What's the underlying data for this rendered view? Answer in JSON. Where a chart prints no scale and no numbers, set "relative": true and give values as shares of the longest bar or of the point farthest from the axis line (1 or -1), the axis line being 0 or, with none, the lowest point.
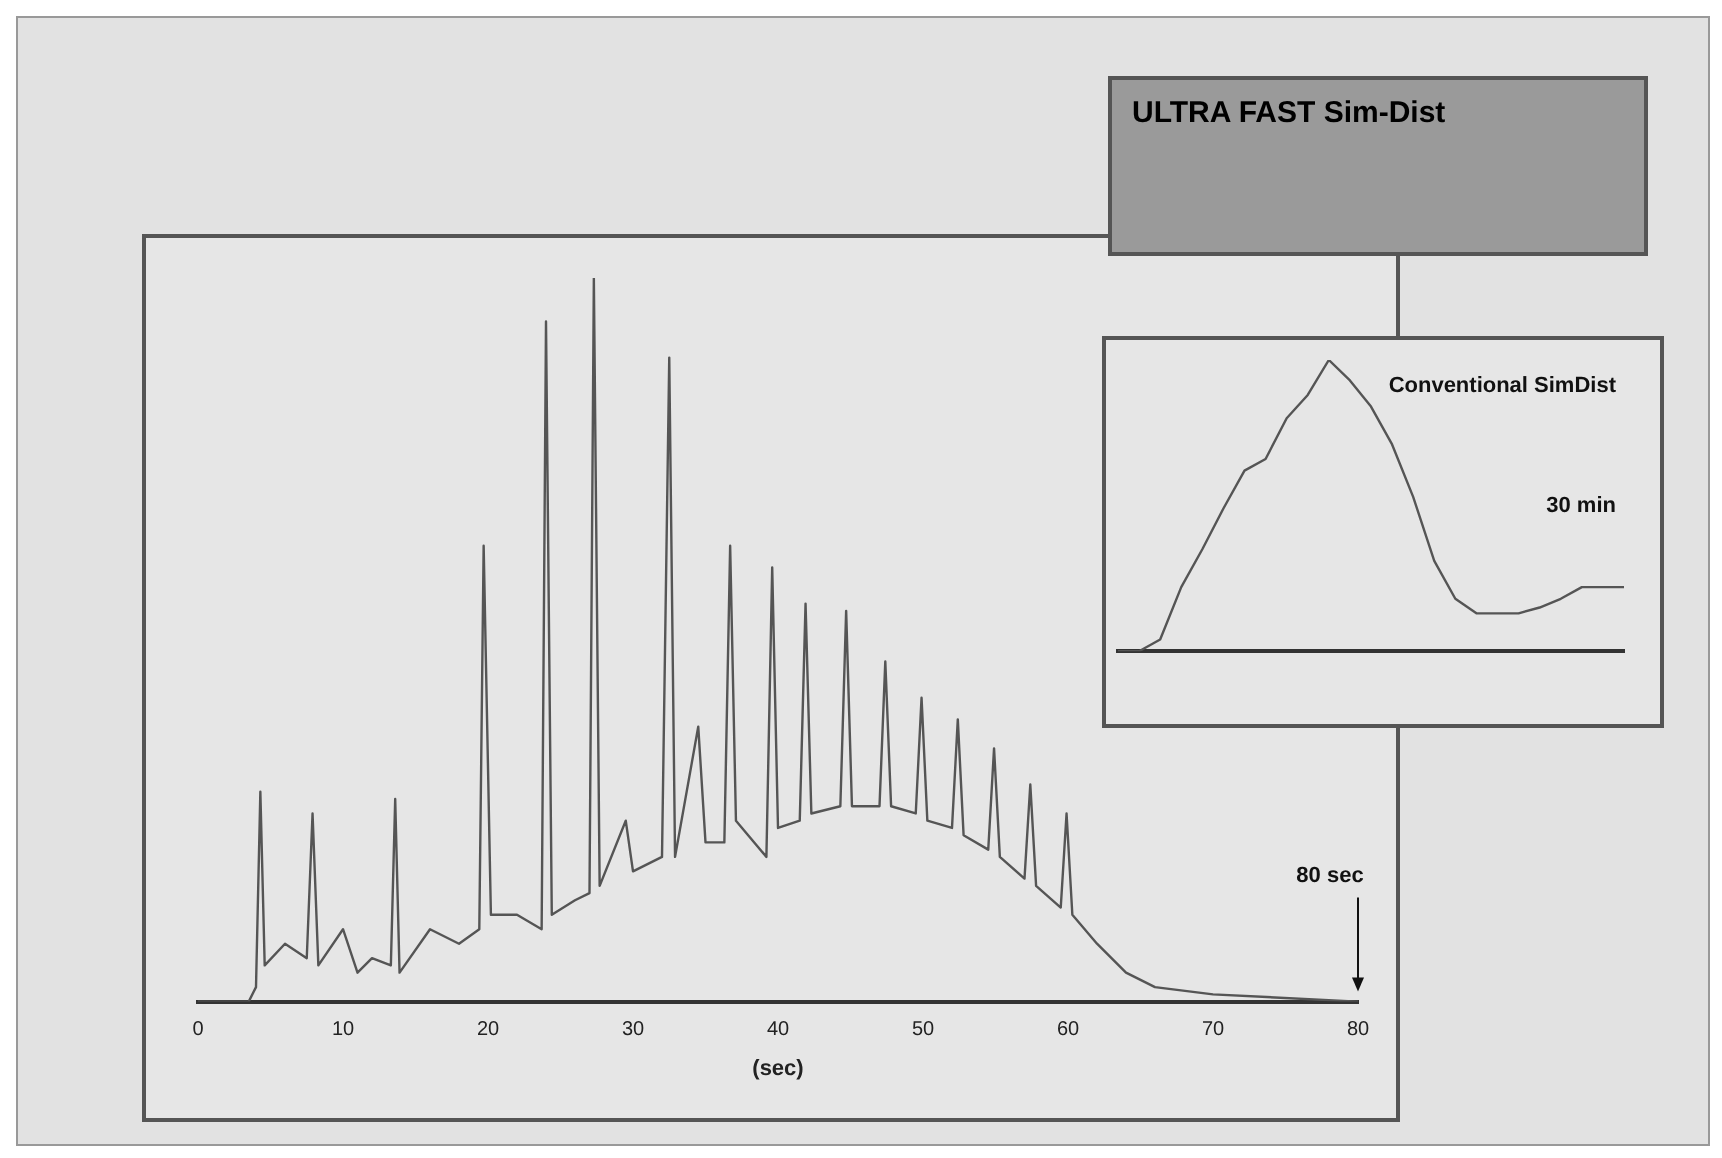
{
  "chart_data": [
    {
      "type": "line",
      "title": "ULTRA FAST Sim-Dist",
      "xlabel": "(sec)",
      "relative": true,
      "xlim": [
        0,
        80
      ],
      "xticks": [
        0,
        10,
        20,
        30,
        40,
        50,
        60,
        70,
        80
      ],
      "grid": false,
      "legend": false,
      "marker": "none",
      "series": [
        {
          "color": "#555555",
          "x": [
            0,
            3.5,
            4.0,
            4.3,
            4.6,
            6,
            7.5,
            7.9,
            8.3,
            10,
            11,
            12,
            13.3,
            13.6,
            13.9,
            16,
            18,
            19.4,
            19.7,
            20.2,
            22,
            23.7,
            24,
            24.4,
            26,
            27,
            27.3,
            27.7,
            29.5,
            30,
            32,
            32.5,
            32.9,
            34.5,
            35,
            36.3,
            36.7,
            37.1,
            39.2,
            39.6,
            40,
            41.5,
            41.9,
            42.3,
            44.3,
            44.7,
            45.1,
            47,
            47.4,
            47.8,
            49.5,
            49.9,
            50.3,
            52,
            52.4,
            52.8,
            54.5,
            54.9,
            55.3,
            57,
            57.4,
            57.8,
            59.5,
            59.9,
            60.3,
            62,
            64,
            66,
            70,
            80
          ],
          "values": [
            0,
            0,
            0.02,
            0.29,
            0.05,
            0.08,
            0.06,
            0.26,
            0.05,
            0.1,
            0.04,
            0.06,
            0.05,
            0.28,
            0.04,
            0.1,
            0.08,
            0.1,
            0.63,
            0.12,
            0.12,
            0.1,
            0.94,
            0.12,
            0.14,
            0.15,
            1.0,
            0.16,
            0.25,
            0.18,
            0.2,
            0.89,
            0.2,
            0.38,
            0.22,
            0.22,
            0.63,
            0.25,
            0.2,
            0.6,
            0.24,
            0.25,
            0.55,
            0.26,
            0.27,
            0.54,
            0.27,
            0.27,
            0.47,
            0.27,
            0.26,
            0.42,
            0.25,
            0.24,
            0.39,
            0.23,
            0.21,
            0.35,
            0.2,
            0.17,
            0.3,
            0.16,
            0.13,
            0.26,
            0.12,
            0.08,
            0.04,
            0.02,
            0.01,
            0
          ]
        }
      ],
      "annotations": [
        {
          "text": "80 sec",
          "x": 80,
          "y": 0
        }
      ]
    },
    {
      "type": "line",
      "relative": true,
      "grid": false,
      "legend": false,
      "marker": "none",
      "categories": [
        null,
        null,
        null,
        null,
        null,
        null,
        null,
        null,
        null,
        null,
        null,
        null,
        null,
        null,
        null,
        null,
        null,
        null,
        null,
        null,
        null,
        null,
        null,
        null,
        null
      ],
      "series": [
        {
          "color": "#555555",
          "values": [
            0,
            0,
            0.04,
            0.22,
            0.35,
            0.49,
            0.62,
            0.66,
            0.8,
            0.88,
            1,
            0.93,
            0.84,
            0.71,
            0.53,
            0.31,
            0.18,
            0.13,
            0.13,
            0.13,
            0.15,
            0.18,
            0.22,
            0.22,
            0.22
          ]
        }
      ],
      "annotations": [
        "Conventional SimDist",
        "30 min"
      ]
    }
  ]
}
